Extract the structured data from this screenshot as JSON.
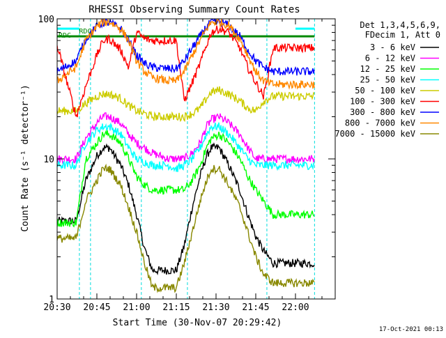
{
  "chart_data": {
    "type": "line",
    "title": "RHESSI Observing Summary Count Rates",
    "xlabel": "Start Time (30-Nov-07 20:29:42)",
    "ylabel": "Count Rate (s⁻¹ detector⁻¹)",
    "yscale": "log",
    "ylim": [
      1,
      100
    ],
    "xlim_minutes": [
      20.5,
      22.25
    ],
    "x_unit": "hours",
    "x_ticks": [
      {
        "v": 20.5,
        "label": "20:30"
      },
      {
        "v": 20.75,
        "label": "20:45"
      },
      {
        "v": 21.0,
        "label": "21:00"
      },
      {
        "v": 21.25,
        "label": "21:15"
      },
      {
        "v": 21.5,
        "label": "21:30"
      },
      {
        "v": 21.75,
        "label": "21:45"
      },
      {
        "v": 22.0,
        "label": "22:00"
      }
    ],
    "y_ticks": [
      {
        "v": 1,
        "label": "1"
      },
      {
        "v": 10,
        "label": "10"
      },
      {
        "v": 100,
        "label": "100"
      }
    ],
    "legend": {
      "placement": "right",
      "header": [
        "Det 1,3,4,5,6,9,",
        "FDecim 1, Att 0"
      ]
    },
    "series": [
      {
        "name": "3 - 6 keV",
        "color": "#000000",
        "x": [
          20.5,
          20.62,
          20.68,
          20.75,
          20.79,
          20.83,
          20.9,
          20.95,
          21.0,
          21.05,
          21.1,
          21.2,
          21.25,
          21.3,
          21.35,
          21.4,
          21.44,
          21.47,
          21.52,
          21.58,
          21.65,
          21.7,
          21.75,
          21.8,
          21.86,
          22.0,
          22.12
        ],
        "y": [
          3.6,
          3.6,
          7,
          10.5,
          12,
          12,
          9,
          6.5,
          4,
          2.3,
          1.6,
          1.6,
          1.6,
          2.4,
          4.5,
          7.5,
          10.5,
          12,
          12,
          9,
          6,
          4,
          2.8,
          2.2,
          1.8,
          1.8,
          1.8
        ]
      },
      {
        "name": "6 - 12 keV",
        "color": "#ff00ff",
        "x": [
          20.5,
          20.62,
          20.68,
          20.75,
          20.79,
          20.83,
          20.9,
          20.95,
          21.0,
          21.05,
          21.1,
          21.2,
          21.25,
          21.3,
          21.35,
          21.4,
          21.44,
          21.47,
          21.52,
          21.58,
          21.65,
          21.7,
          21.75,
          21.8,
          21.86,
          22.0,
          22.12
        ],
        "y": [
          10,
          10,
          14,
          18,
          20,
          20,
          18,
          15,
          13,
          12,
          11,
          10,
          10,
          10,
          11,
          13,
          17,
          19,
          20,
          18,
          15,
          12,
          10,
          10,
          10,
          10,
          10
        ]
      },
      {
        "name": "12 - 25 keV",
        "color": "#00ff00",
        "x": [
          20.5,
          20.62,
          20.68,
          20.75,
          20.79,
          20.83,
          20.9,
          20.95,
          21.0,
          21.05,
          21.1,
          21.2,
          21.25,
          21.3,
          21.35,
          21.4,
          21.44,
          21.47,
          21.52,
          21.58,
          21.65,
          21.7,
          21.75,
          21.8,
          21.86,
          22.0,
          22.12
        ],
        "y": [
          3.5,
          3.5,
          10,
          13,
          15,
          15,
          13,
          10,
          7.5,
          6.5,
          6,
          6,
          6,
          6,
          7,
          9,
          12,
          14,
          15,
          13,
          10,
          7.5,
          6,
          5,
          4,
          4,
          4
        ]
      },
      {
        "name": "25 - 50 keV",
        "color": "#00ffff",
        "x": [
          20.5,
          20.62,
          20.68,
          20.75,
          20.79,
          20.83,
          20.9,
          20.95,
          21.0,
          21.05,
          21.1,
          21.2,
          21.25,
          21.3,
          21.35,
          21.4,
          21.44,
          21.47,
          21.52,
          21.58,
          21.65,
          21.7,
          21.75,
          21.8,
          21.86,
          22.0,
          22.12
        ],
        "y": [
          9,
          9,
          13,
          16,
          17,
          17,
          15,
          12,
          10,
          9.5,
          9,
          9,
          8.5,
          9,
          10,
          12,
          15,
          17,
          17,
          15,
          12,
          10,
          9,
          9,
          9,
          9,
          9
        ]
      },
      {
        "name": "50 - 100 keV",
        "color": "#cccc00",
        "x": [
          20.5,
          20.62,
          20.68,
          20.75,
          20.79,
          20.83,
          20.9,
          20.95,
          21.0,
          21.05,
          21.1,
          21.2,
          21.25,
          21.3,
          21.35,
          21.4,
          21.44,
          21.47,
          21.52,
          21.58,
          21.65,
          21.7,
          21.75,
          21.8,
          21.86,
          22.0,
          22.12
        ],
        "y": [
          22,
          22,
          25,
          28,
          29,
          29,
          27,
          24,
          22,
          21,
          20,
          20,
          20,
          20,
          21,
          23,
          27,
          30,
          31,
          29,
          26,
          23,
          22,
          26,
          28,
          28,
          28
        ]
      },
      {
        "name": "100 - 300 keV",
        "color": "#ff0000",
        "x": [
          20.5,
          20.62,
          20.68,
          20.75,
          20.79,
          20.83,
          20.9,
          20.95,
          21.0,
          21.05,
          21.1,
          21.2,
          21.25,
          21.3,
          21.35,
          21.4,
          21.44,
          21.47,
          21.52,
          21.58,
          21.65,
          21.7,
          21.75,
          21.8,
          21.86,
          22.0,
          22.12
        ],
        "y": [
          65,
          20,
          33,
          55,
          70,
          72,
          60,
          45,
          80,
          72,
          70,
          70,
          70,
          26,
          35,
          48,
          65,
          80,
          85,
          80,
          62,
          45,
          35,
          28,
          62,
          62,
          62
        ]
      },
      {
        "name": "300 - 800 keV",
        "color": "#0000ff",
        "x": [
          20.5,
          20.62,
          20.68,
          20.75,
          20.79,
          20.83,
          20.9,
          20.95,
          21.0,
          21.05,
          21.1,
          21.2,
          21.25,
          21.3,
          21.35,
          21.4,
          21.44,
          21.47,
          21.52,
          21.58,
          21.65,
          21.7,
          21.75,
          21.8,
          21.86,
          22.0,
          22.12
        ],
        "y": [
          42,
          50,
          72,
          88,
          94,
          94,
          85,
          70,
          55,
          48,
          45,
          44,
          44,
          50,
          62,
          75,
          88,
          94,
          95,
          90,
          75,
          60,
          50,
          45,
          42,
          42,
          42
        ]
      },
      {
        "name": "800 - 7000 keV",
        "color": "#ff8800",
        "x": [
          20.5,
          20.62,
          20.68,
          20.75,
          20.79,
          20.83,
          20.9,
          20.95,
          21.0,
          21.05,
          21.1,
          21.2,
          21.25,
          21.3,
          21.35,
          21.4,
          21.44,
          21.47,
          21.52,
          21.58,
          21.65,
          21.7,
          21.75,
          21.8,
          21.86,
          22.0,
          22.12
        ],
        "y": [
          36,
          45,
          70,
          88,
          95,
          95,
          85,
          70,
          50,
          42,
          38,
          36,
          36,
          42,
          55,
          70,
          85,
          94,
          95,
          90,
          72,
          55,
          42,
          36,
          34,
          34,
          34
        ]
      },
      {
        "name": "7000 - 15000 keV",
        "color": "#888800",
        "x": [
          20.5,
          20.62,
          20.68,
          20.75,
          20.79,
          20.83,
          20.9,
          20.95,
          21.0,
          21.05,
          21.1,
          21.2,
          21.25,
          21.3,
          21.35,
          21.4,
          21.44,
          21.47,
          21.52,
          21.58,
          21.65,
          21.7,
          21.75,
          21.8,
          21.86,
          22.0,
          22.12
        ],
        "y": [
          2.7,
          2.7,
          5,
          7,
          8.5,
          8.5,
          6.5,
          4.5,
          3,
          1.8,
          1.2,
          1.2,
          1.2,
          1.8,
          3,
          5,
          7,
          8.5,
          8.5,
          6.5,
          4.5,
          3,
          2,
          1.5,
          1.3,
          1.3,
          1.3
        ]
      }
    ],
    "flags": [
      {
        "label": "RDC",
        "color": "#008800",
        "value": 75
      },
      {
        "label": "RDC",
        "color": "#008800",
        "value": 75
      }
    ],
    "flag_bars": [
      {
        "color": "#00ffff",
        "y": 85,
        "segments": [
          [
            20.5,
            20.64
          ],
          [
            22.0,
            22.12
          ]
        ]
      },
      {
        "color": "#008800",
        "y": 75,
        "segments": [
          [
            20.5,
            20.64
          ],
          [
            20.64,
            21.03
          ],
          [
            21.03,
            21.32
          ],
          [
            21.32,
            22.12
          ]
        ]
      }
    ],
    "vlines": [
      20.64,
      20.71,
      21.03,
      21.32,
      21.82,
      22.12
    ]
  },
  "footer": {
    "timestamp": "17-Oct-2021 00:13"
  }
}
